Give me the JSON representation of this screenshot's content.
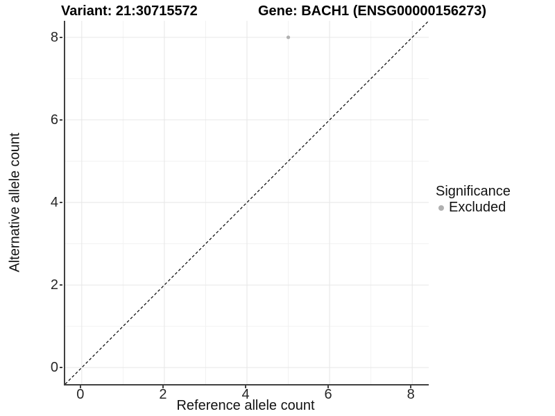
{
  "chart_data": {
    "type": "scatter",
    "title_left": "Variant: 21:30715572",
    "title_right": "Gene: BACH1 (ENSG00000156273)",
    "xlabel": "Reference allele count",
    "ylabel": "Alternative allele count",
    "xlim": [
      -0.4,
      8.4
    ],
    "ylim": [
      -0.4,
      8.4
    ],
    "xticks": [
      0,
      2,
      4,
      6,
      8
    ],
    "yticks": [
      0,
      2,
      4,
      6,
      8
    ],
    "grid": "major-and-minor",
    "points": [
      {
        "x": 5,
        "y": 8,
        "series": "Excluded"
      }
    ],
    "identity_line": {
      "style": "dashed",
      "from": [
        -0.4,
        -0.4
      ],
      "to": [
        8.4,
        8.4
      ]
    },
    "legend": {
      "title": "Significance",
      "position": "right",
      "items": [
        {
          "label": "Excluded",
          "color": "#b0b0b0"
        }
      ]
    }
  },
  "colors": {
    "excluded_point": "#b0b0b0",
    "grid_major": "#e6e6e6",
    "grid_minor": "#f2f2f2",
    "axis_line": "#404040",
    "tick_text": "#262626",
    "title_text": "#000000",
    "identity_line": "#000000",
    "background": "#ffffff"
  }
}
